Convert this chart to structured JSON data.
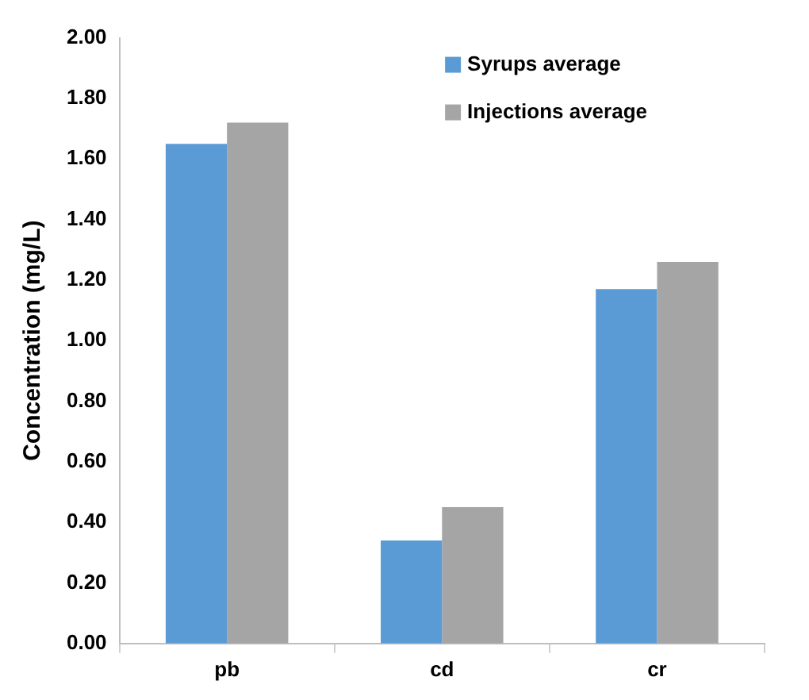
{
  "chart_data": {
    "type": "bar",
    "ylabel": "Concentration (mg/L)",
    "categories": [
      "pb",
      "cd",
      "cr"
    ],
    "series": [
      {
        "name": "Syrups average",
        "color": "#5b9bd5",
        "values": [
          1.65,
          0.34,
          1.17
        ]
      },
      {
        "name": "Injections average",
        "color": "#a5a5a5",
        "values": [
          1.72,
          0.45,
          1.26
        ]
      }
    ],
    "ylim": [
      0,
      2
    ],
    "yticks": [
      {
        "value": 0,
        "label": "0.00"
      },
      {
        "value": 0.2,
        "label": "0.20"
      },
      {
        "value": 0.4,
        "label": "0.40"
      },
      {
        "value": 0.6,
        "label": "0.60"
      },
      {
        "value": 0.8,
        "label": "0.80"
      },
      {
        "value": 1,
        "label": "1.00"
      },
      {
        "value": 1.2,
        "label": "1.20"
      },
      {
        "value": 1.4,
        "label": "1.40"
      },
      {
        "value": 1.6,
        "label": "1.60"
      },
      {
        "value": 1.8,
        "label": "1.80"
      },
      {
        "value": 2,
        "label": "2.00"
      }
    ],
    "grid": false,
    "legend": "top right"
  }
}
